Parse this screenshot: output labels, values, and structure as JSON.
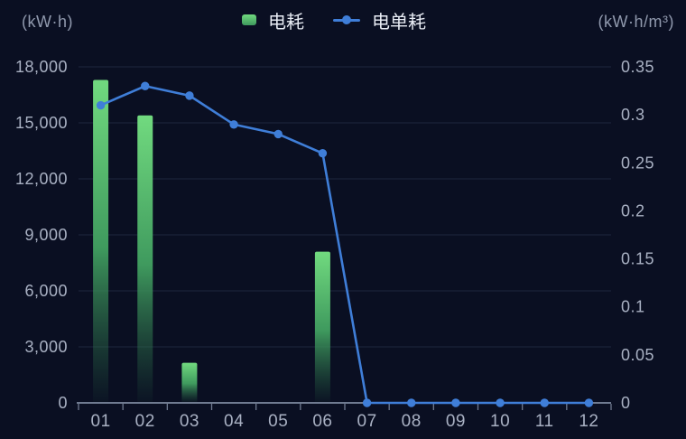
{
  "colors": {
    "background": "#0a0f22",
    "grid_line": "rgba(130,165,220,0.16)",
    "axis_line": "#6f7a90",
    "tick_text": "#a9b1c3",
    "unit_text": "#9099ad",
    "legend_text": "#e9edf5",
    "bar_green_top": "#71da7f",
    "bar_green_mid": "#3f9a5e",
    "bar_green_fade": "rgba(40,105,70,0.05)",
    "line_blue": "#3f7ed8"
  },
  "header": {
    "left_axis_unit": "(kW·h)",
    "right_axis_unit": "(kW·h/m³)",
    "legend": [
      {
        "label": "电耗",
        "type": "bar"
      },
      {
        "label": "电单耗",
        "type": "line"
      }
    ]
  },
  "chart_data": {
    "type": "bar",
    "subtype": "combo bar + line, dual y-axes",
    "categories": [
      "01",
      "02",
      "03",
      "04",
      "05",
      "06",
      "07",
      "08",
      "09",
      "10",
      "11",
      "12"
    ],
    "series": [
      {
        "name": "电耗",
        "type": "bar",
        "yaxis": "left",
        "values": [
          17300,
          15400,
          2150,
          0,
          0,
          8100,
          0,
          0,
          0,
          0,
          0,
          0
        ]
      },
      {
        "name": "电单耗",
        "type": "line",
        "yaxis": "right",
        "values": [
          0.31,
          0.33,
          0.32,
          0.29,
          0.28,
          0.26,
          0,
          0,
          0,
          0,
          0,
          0
        ]
      }
    ],
    "left_axis": {
      "unit": "(kW·h)",
      "min": 0,
      "max": 18000,
      "tick_labels": [
        "18,000",
        "15,000",
        "12,000",
        "9,000",
        "6,000",
        "3,000",
        "0"
      ]
    },
    "right_axis": {
      "unit": "(kW·h/m³)",
      "min": 0,
      "max": 0.35,
      "tick_labels": [
        "0.35",
        "0.3",
        "0.25",
        "0.2",
        "0.15",
        "0.1",
        "0.05",
        "0"
      ]
    },
    "grid": true,
    "legend_position": "top-center",
    "xlabel": "",
    "ylabel": ""
  }
}
